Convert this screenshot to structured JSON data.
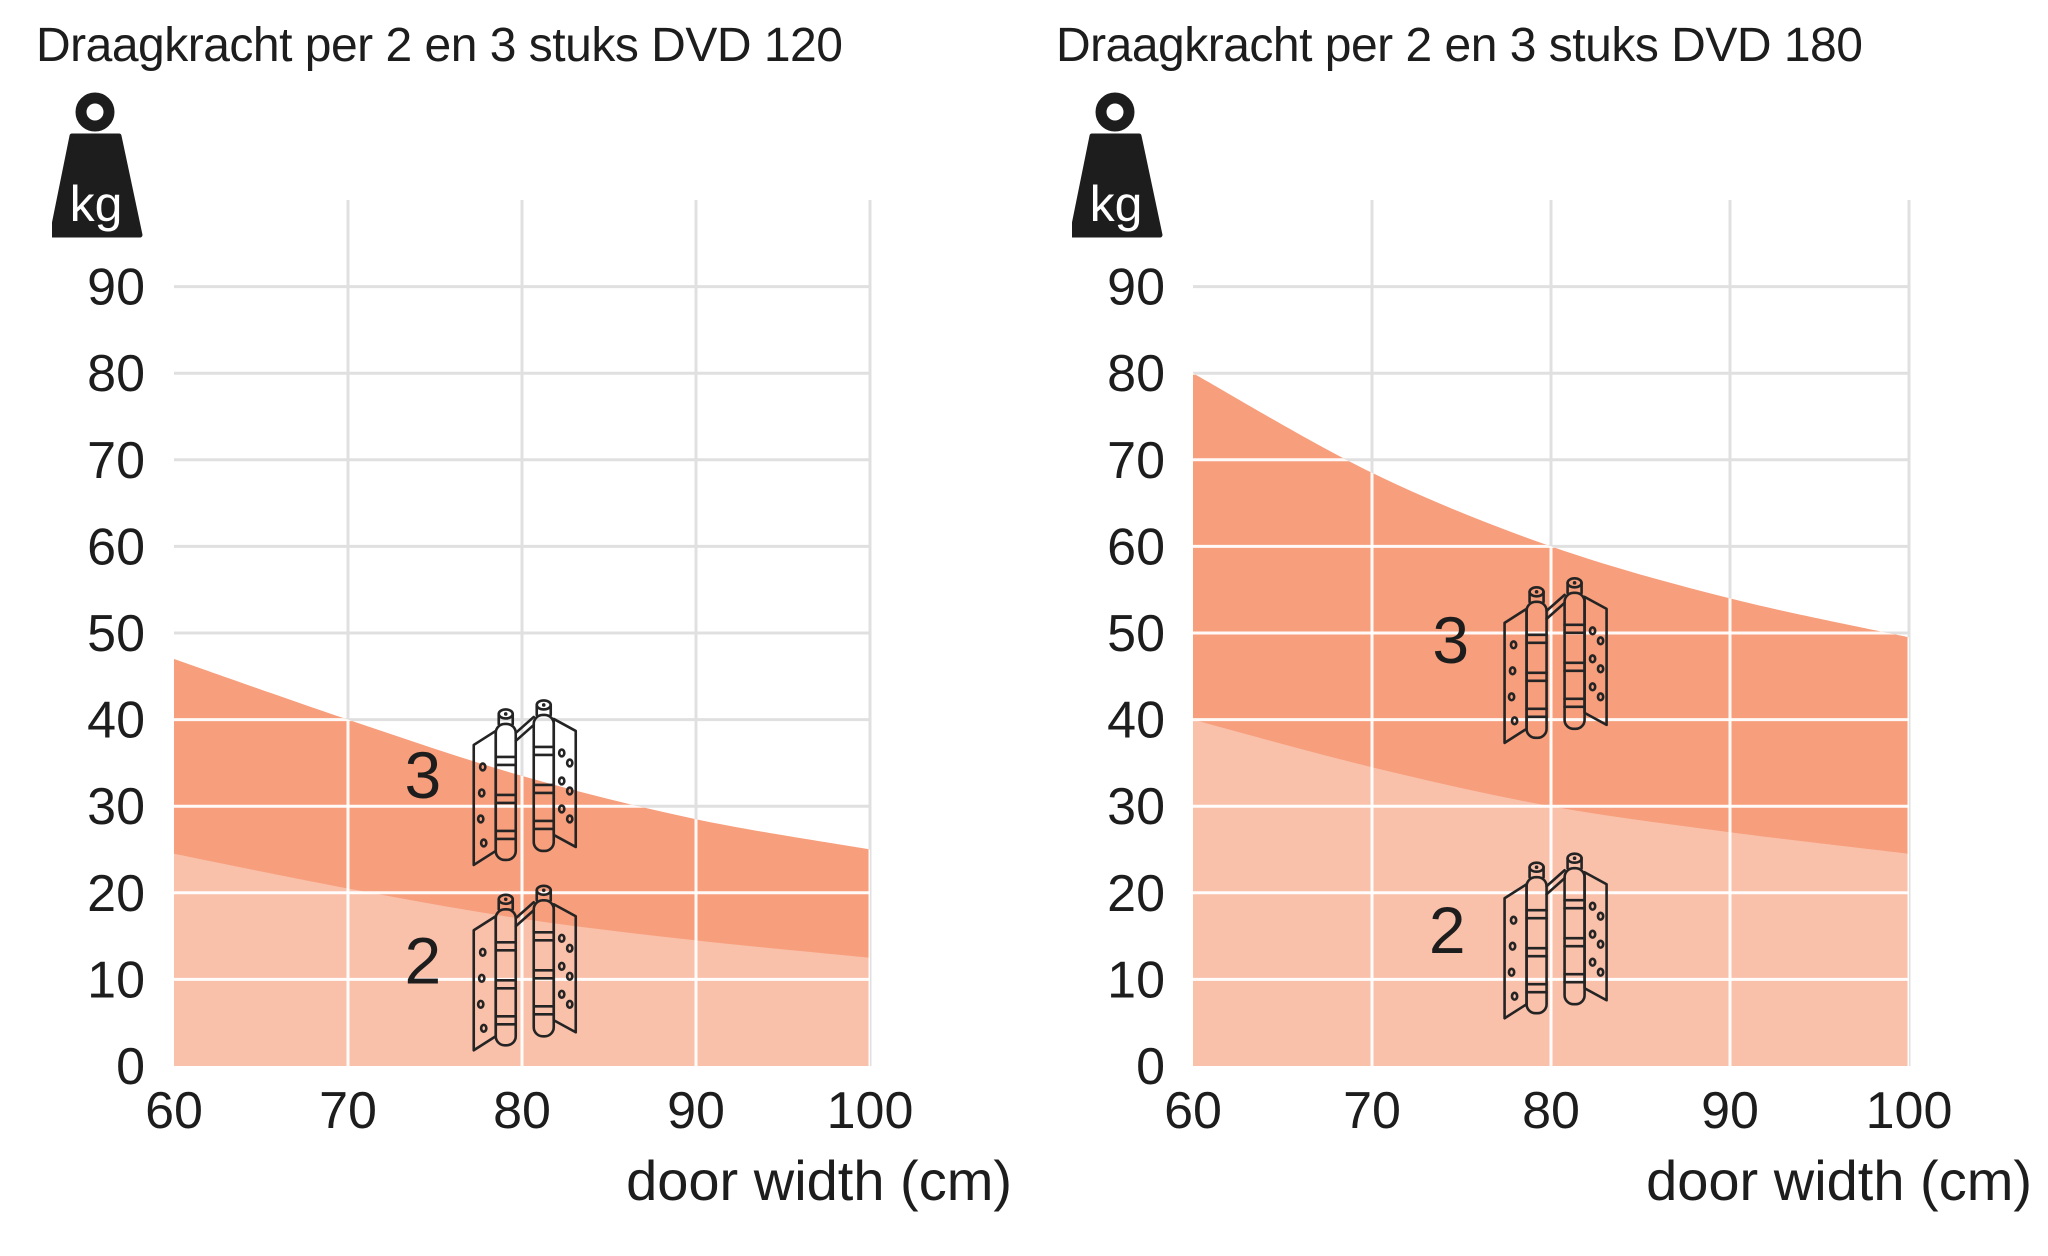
{
  "page": {
    "background": "#ffffff"
  },
  "colors": {
    "series_3": "#f79e7c",
    "series_2": "#f9c0aa",
    "grid_over_background": "#e0e0e0",
    "grid_over_area": "#ffffff",
    "text": "#1d1d1d",
    "icon_black": "#1d1d1d",
    "line_art": "#242424"
  },
  "charts": [
    {
      "title": "Draagkracht per 2 en 3 stuks DVD 120",
      "kg_badge": "kg",
      "xlabel": "door width (cm)",
      "chart_data": {
        "type": "area",
        "x": [
          60,
          70,
          80,
          90,
          100
        ],
        "series": [
          {
            "name": "3 hinges DVD 120",
            "label": "3",
            "values": [
              47,
              40,
              33.5,
              28.5,
              25
            ]
          },
          {
            "name": "2 hinges DVD 120",
            "label": "2",
            "values": [
              24.5,
              20.5,
              17,
              14.5,
              12.5
            ]
          }
        ],
        "xlim": [
          60,
          100
        ],
        "ylim": [
          0,
          100
        ],
        "xticks": [
          60,
          70,
          80,
          90,
          100
        ],
        "yticks": [
          0,
          10,
          20,
          30,
          40,
          50,
          60,
          70,
          80,
          90
        ],
        "xlabel": "door width (cm)",
        "grid": true,
        "legend": "none"
      },
      "annotations": [
        {
          "label": "3",
          "label_x_cm": 74.3,
          "label_y_kg": 33.6,
          "icon": "hinge-pair-icon",
          "icon_x_cm": 80.1,
          "icon_y_kg": 32.8
        },
        {
          "label": "2",
          "label_x_cm": 74.3,
          "label_y_kg": 12.2,
          "icon": "hinge-pair-icon",
          "icon_x_cm": 80.1,
          "icon_y_kg": 11.4
        }
      ]
    },
    {
      "title": "Draagkracht per 2 en 3 stuks DVD 180",
      "kg_badge": "kg",
      "xlabel": "door width (cm)",
      "chart_data": {
        "type": "area",
        "x": [
          60,
          70,
          80,
          90,
          100
        ],
        "series": [
          {
            "name": "3 hinges DVD 180",
            "label": "3",
            "values": [
              80,
              68.5,
              60,
              54,
              49.5
            ]
          },
          {
            "name": "2 hinges DVD 180",
            "label": "2",
            "values": [
              40,
              34.5,
              30,
              27,
              24.5
            ]
          }
        ],
        "xlim": [
          60,
          100
        ],
        "ylim": [
          0,
          100
        ],
        "xticks": [
          60,
          70,
          80,
          90,
          100
        ],
        "yticks": [
          0,
          10,
          20,
          30,
          40,
          50,
          60,
          70,
          80,
          90
        ],
        "xlabel": "door width (cm)",
        "grid": true,
        "legend": "none"
      },
      "annotations": [
        {
          "label": "3",
          "label_x_cm": 74.4,
          "label_y_kg": 49.2,
          "icon": "hinge-pair-icon",
          "icon_x_cm": 80.2,
          "icon_y_kg": 46.9
        },
        {
          "label": "2",
          "label_x_cm": 74.2,
          "label_y_kg": 15.7,
          "icon": "hinge-pair-icon",
          "icon_x_cm": 80.2,
          "icon_y_kg": 15.1
        }
      ]
    }
  ]
}
